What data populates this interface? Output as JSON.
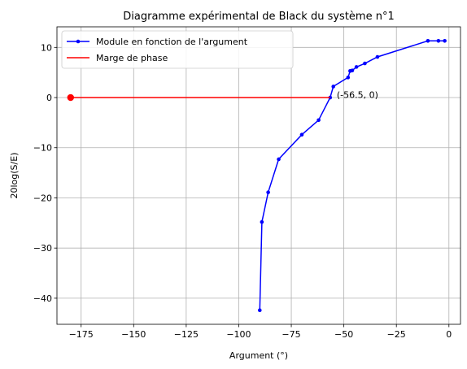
{
  "chart_data": {
    "type": "line",
    "title": "Diagramme expérimental de Black du système n°1",
    "xlabel": "Argument (°)",
    "ylabel": "20log(S/E)",
    "xlim": [
      -186.5,
      5.5
    ],
    "ylim": [
      -45.2,
      14.1
    ],
    "xticks": [
      -175,
      -150,
      -125,
      -100,
      -75,
      -50,
      -25,
      0
    ],
    "yticks": [
      -40,
      -30,
      -20,
      -10,
      0,
      10
    ],
    "grid": true,
    "legend_position": "top-left",
    "series": [
      {
        "name": "Module en fonction de l'argument",
        "color": "#0000ff",
        "marker": "dot",
        "x": [
          -90,
          -89,
          -86,
          -81,
          -70,
          -62,
          -56.5,
          -55,
          -48,
          -47,
          -46,
          -44,
          -40,
          -34,
          -10,
          -5,
          -2
        ],
        "y": [
          -42.4,
          -24.8,
          -18.9,
          -12.3,
          -7.4,
          -4.5,
          0,
          2.2,
          4.0,
          5.3,
          5.4,
          6.1,
          6.8,
          8.1,
          11.3,
          11.3,
          11.3
        ]
      },
      {
        "name": "Marge de phase",
        "color": "#ff0000",
        "marker": "none",
        "x": [
          -180,
          -56.5
        ],
        "y": [
          0,
          0
        ]
      }
    ],
    "annotations": [
      {
        "text": "(-56.5, 0)",
        "x": -56.5,
        "y": 0
      }
    ],
    "highlight_point": {
      "x": -180,
      "y": 0,
      "color": "#ff0000"
    }
  }
}
